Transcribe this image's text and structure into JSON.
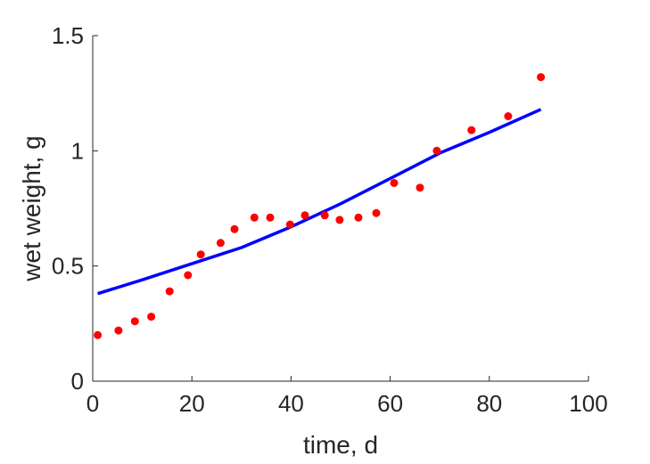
{
  "chart_data": {
    "type": "scatter",
    "title": "",
    "xlabel": "time, d",
    "ylabel": "wet weight, g",
    "xlim": [
      0,
      100
    ],
    "ylim": [
      0,
      1.5
    ],
    "xticks": [
      0,
      20,
      40,
      60,
      80,
      100
    ],
    "xtick_labels": [
      "0",
      "20",
      "40",
      "60",
      "80",
      "100"
    ],
    "yticks": [
      0,
      0.5,
      1,
      1.5
    ],
    "ytick_labels": [
      "0",
      "0.5",
      "1",
      "1.5"
    ],
    "grid": false,
    "series": [
      {
        "kind": "scatter",
        "color": "#ff0000",
        "x": [
          1,
          5.2,
          8.5,
          11.8,
          15.5,
          19.2,
          21.8,
          25.8,
          28.6,
          32.6,
          35.8,
          39.8,
          42.8,
          46.8,
          49.8,
          53.6,
          57.2,
          60.8,
          66.0,
          69.4,
          76.4,
          83.8,
          90.4
        ],
        "y": [
          0.2,
          0.22,
          0.26,
          0.28,
          0.39,
          0.46,
          0.55,
          0.6,
          0.66,
          0.71,
          0.71,
          0.68,
          0.72,
          0.72,
          0.7,
          0.71,
          0.73,
          0.86,
          0.84,
          1.0,
          1.09,
          1.15,
          1.32
        ]
      },
      {
        "kind": "line",
        "color": "#0000ff",
        "x": [
          1,
          10,
          20,
          30,
          40,
          50,
          60,
          70,
          80,
          90.4
        ],
        "y": [
          0.38,
          0.44,
          0.51,
          0.58,
          0.67,
          0.77,
          0.88,
          0.99,
          1.08,
          1.18
        ]
      }
    ]
  }
}
